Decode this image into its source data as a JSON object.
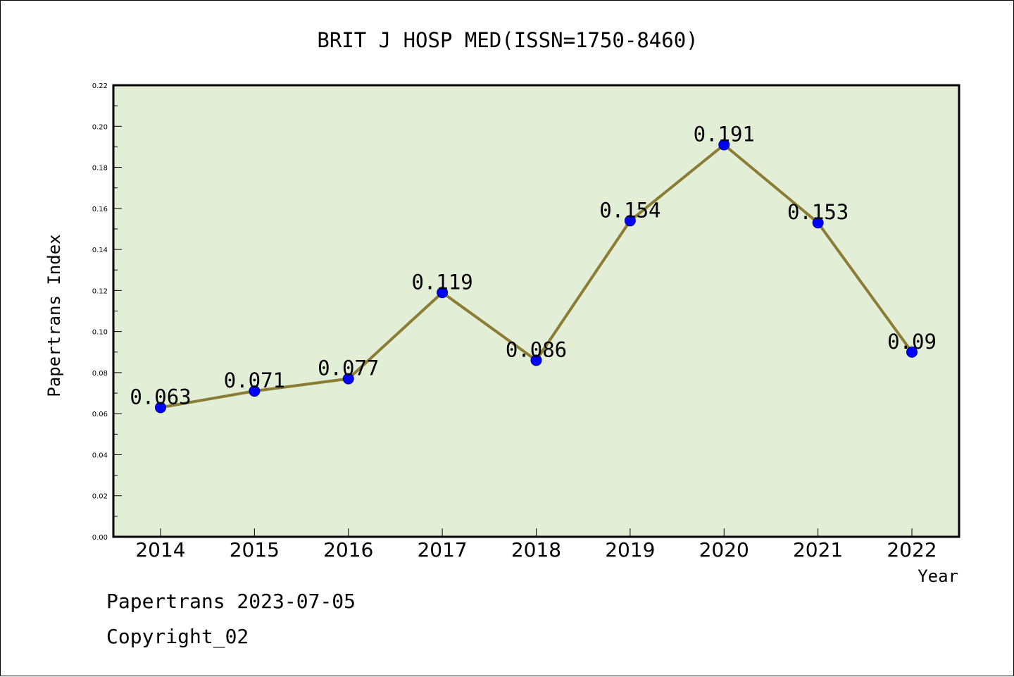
{
  "chart_data": {
    "type": "line",
    "title": "BRIT J HOSP MED(ISSN=1750-8460)",
    "xlabel": "Year",
    "ylabel": "Papertrans Index",
    "categories": [
      "2014",
      "2015",
      "2016",
      "2017",
      "2018",
      "2019",
      "2020",
      "2021",
      "2022"
    ],
    "values": [
      0.063,
      0.071,
      0.077,
      0.119,
      0.086,
      0.154,
      0.191,
      0.153,
      0.09
    ],
    "data_labels": [
      "0.063",
      "0.071",
      "0.077",
      "0.119",
      "0.086",
      "0.154",
      "0.191",
      "0.153",
      "0.09"
    ],
    "ylim": [
      0,
      0.22
    ],
    "yticks": [
      "0.00",
      "0.02",
      "0.04",
      "0.06",
      "0.08",
      "0.10",
      "0.12",
      "0.14",
      "0.16",
      "0.18",
      "0.20",
      "0.22"
    ],
    "grid": false,
    "colors": {
      "plot_background": "#e2efd6",
      "line": "#8b7d35",
      "marker": "#0000ff"
    }
  },
  "footer": {
    "line1": "Papertrans 2023-07-05",
    "line2": "Copyright_02"
  }
}
